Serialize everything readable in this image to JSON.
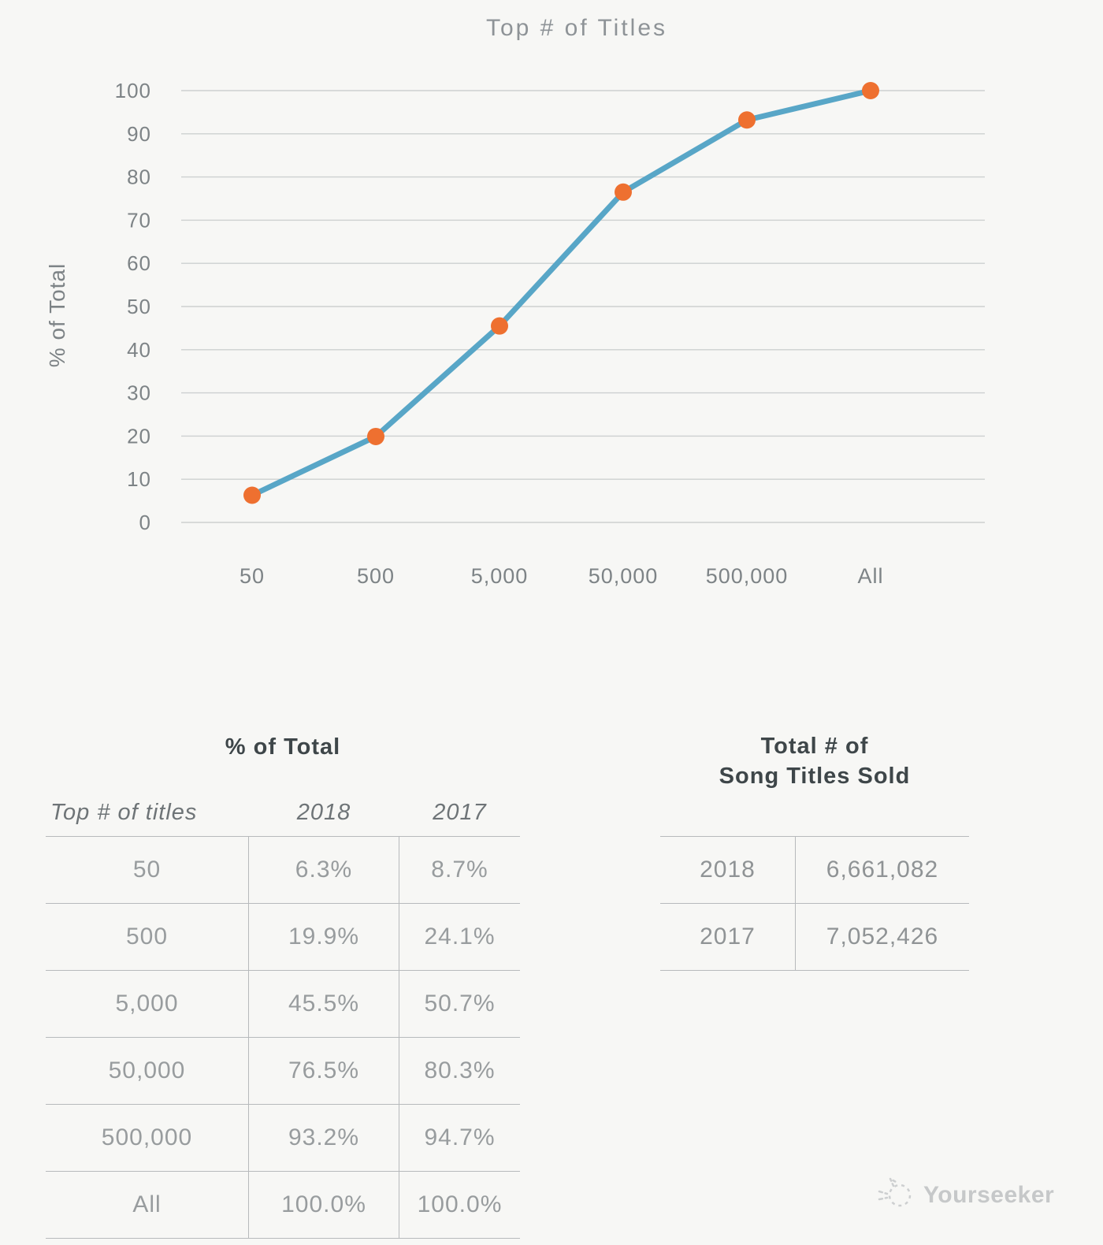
{
  "chart_data": {
    "type": "line",
    "title": "Top # of Titles",
    "xlabel": "",
    "ylabel": "% of Total",
    "categories": [
      "50",
      "500",
      "5,000",
      "50,000",
      "500,000",
      "All"
    ],
    "series": [
      {
        "name": "2018",
        "values": [
          6.3,
          19.9,
          45.5,
          76.5,
          93.2,
          100.0
        ]
      }
    ],
    "ylim": [
      0,
      100
    ],
    "ytick_step": 10,
    "grid": true,
    "legend": false,
    "colors": {
      "line": "#58a6c7",
      "marker": "#ee7030",
      "grid": "#cdd0d0",
      "axis_text": "#7d8386",
      "title_text": "#8e9397"
    }
  },
  "left_table": {
    "title": "% of Total",
    "columns": [
      "Top # of titles",
      "2018",
      "2017"
    ],
    "rows": [
      [
        "50",
        "6.3%",
        "8.7%"
      ],
      [
        "500",
        "19.9%",
        "24.1%"
      ],
      [
        "5,000",
        "45.5%",
        "50.7%"
      ],
      [
        "50,000",
        "76.5%",
        "80.3%"
      ],
      [
        "500,000",
        "93.2%",
        "94.7%"
      ],
      [
        "All",
        "100.0%",
        "100.0%"
      ]
    ]
  },
  "right_table": {
    "title_line1": "Total # of",
    "title_line2": "Song Titles Sold",
    "rows": [
      [
        "2018",
        "6,661,082"
      ],
      [
        "2017",
        "7,052,426"
      ]
    ]
  },
  "watermark": {
    "text": "Yourseeker"
  }
}
